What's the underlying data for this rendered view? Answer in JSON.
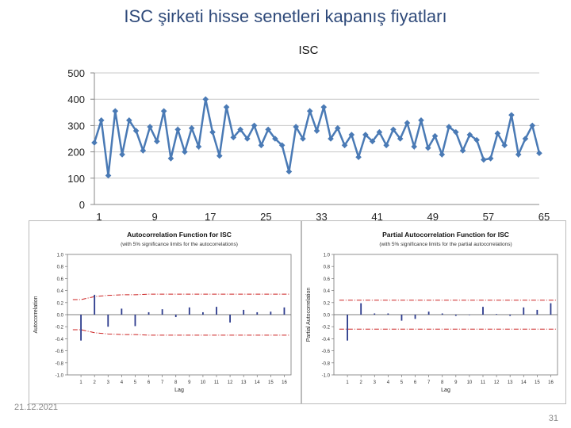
{
  "slide": {
    "title": "ISC şirketi hisse senetleri kapanış fiyatları",
    "date": "21.12.2021",
    "page_number": "31"
  },
  "chart_data": [
    {
      "type": "line",
      "title": "ISC",
      "ylim": [
        0,
        500
      ],
      "yticks": [
        0,
        100,
        200,
        300,
        400,
        500
      ],
      "xticks": [
        1,
        9,
        17,
        25,
        33,
        41,
        49,
        57,
        65
      ],
      "xlim": [
        1,
        65
      ],
      "grid": true,
      "color": "#4a7ab5",
      "values": [
        235,
        320,
        110,
        355,
        190,
        320,
        280,
        205,
        295,
        240,
        355,
        175,
        285,
        200,
        290,
        220,
        400,
        275,
        185,
        370,
        255,
        285,
        250,
        300,
        225,
        285,
        250,
        225,
        125,
        295,
        250,
        355,
        280,
        370,
        250,
        290,
        225,
        265,
        180,
        265,
        240,
        275,
        225,
        285,
        250,
        310,
        220,
        320,
        215,
        260,
        190,
        295,
        275,
        205,
        265,
        245,
        170,
        175,
        270,
        225,
        340,
        190,
        250,
        300,
        195
      ]
    },
    {
      "type": "bar",
      "title": "Autocorrelation Function for ISC",
      "subtitle": "(with 5% significance limits for the autocorrelations)",
      "xlabel": "Lag",
      "ylabel": "Autocorrelation",
      "ylim": [
        -1,
        1
      ],
      "yticks": [
        "1.0",
        "0.8",
        "0.6",
        "0.4",
        "0.2",
        "0.0",
        "-0.2",
        "-0.4",
        "-0.6",
        "-0.8",
        "-1.0"
      ],
      "lags": [
        1,
        2,
        3,
        4,
        5,
        6,
        7,
        8,
        9,
        10,
        11,
        12,
        13,
        14,
        15,
        16
      ],
      "values": [
        -0.43,
        0.33,
        -0.2,
        0.1,
        -0.19,
        0.04,
        0.09,
        -0.04,
        0.12,
        0.04,
        0.13,
        -0.13,
        0.08,
        0.04,
        0.05,
        0.12
      ],
      "upper_limit": [
        0.25,
        0.3,
        0.32,
        0.33,
        0.33,
        0.34,
        0.34,
        0.34,
        0.34,
        0.34,
        0.34,
        0.34,
        0.34,
        0.34,
        0.34,
        0.34
      ],
      "lower_limit": [
        -0.25,
        -0.3,
        -0.32,
        -0.33,
        -0.33,
        -0.34,
        -0.34,
        -0.34,
        -0.34,
        -0.34,
        -0.34,
        -0.34,
        -0.34,
        -0.34,
        -0.34,
        -0.34
      ],
      "bar_color": "#2b3a8c",
      "limit_color": "#cc2222"
    },
    {
      "type": "bar",
      "title": "Partial Autocorrelation Function for ISC",
      "subtitle": "(with 5% significance limits for the partial autocorrelations)",
      "xlabel": "Lag",
      "ylabel": "Partial Autocorrelation",
      "ylim": [
        -1,
        1
      ],
      "yticks": [
        "1.0",
        "0.8",
        "0.6",
        "0.4",
        "0.2",
        "0.0",
        "-0.2",
        "-0.4",
        "-0.6",
        "-0.8",
        "-1.0"
      ],
      "lags": [
        1,
        2,
        3,
        4,
        5,
        6,
        7,
        8,
        9,
        10,
        11,
        12,
        13,
        14,
        15,
        16
      ],
      "values": [
        -0.43,
        0.19,
        0.02,
        0.02,
        -0.1,
        -0.07,
        0.05,
        0.02,
        -0.02,
        0.0,
        0.13,
        0.01,
        -0.02,
        0.12,
        0.08,
        0.19
      ],
      "upper_limit": 0.24,
      "lower_limit": -0.24,
      "bar_color": "#2b3a8c",
      "limit_color": "#cc2222"
    }
  ]
}
